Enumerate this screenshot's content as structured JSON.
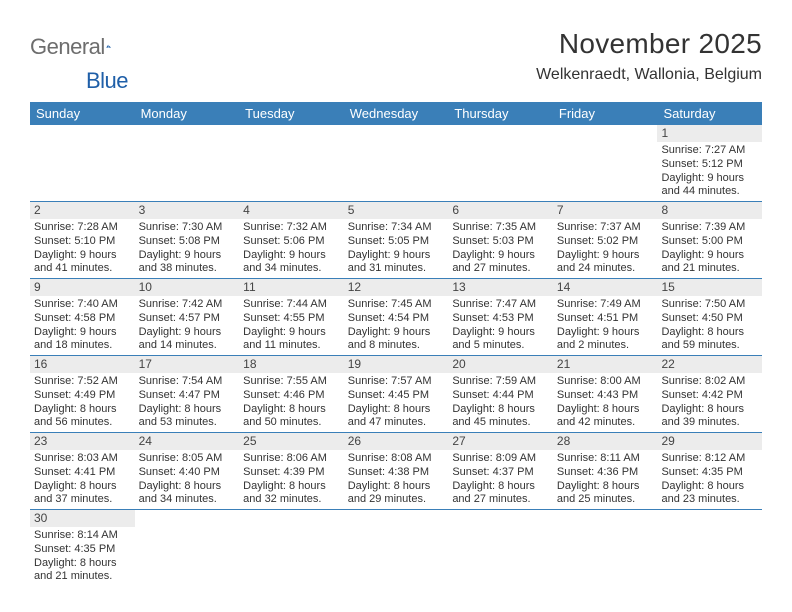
{
  "colors": {
    "header_bar": "#3a7fb8",
    "cell_divider": "#3a7fb8",
    "daynum_bg": "#ececec",
    "text": "#333333",
    "logo_gray": "#6d6d6d",
    "logo_blue": "#1f5fa8"
  },
  "logo": {
    "text_left": "General",
    "text_right": "Blue"
  },
  "title": {
    "month": "November 2025",
    "location": "Welkenraedt, Wallonia, Belgium"
  },
  "day_names": [
    "Sunday",
    "Monday",
    "Tuesday",
    "Wednesday",
    "Thursday",
    "Friday",
    "Saturday"
  ],
  "weeks": [
    [
      null,
      null,
      null,
      null,
      null,
      null,
      {
        "n": "1",
        "sr": "Sunrise: 7:27 AM",
        "ss": "Sunset: 5:12 PM",
        "d1": "Daylight: 9 hours",
        "d2": "and 44 minutes."
      }
    ],
    [
      {
        "n": "2",
        "sr": "Sunrise: 7:28 AM",
        "ss": "Sunset: 5:10 PM",
        "d1": "Daylight: 9 hours",
        "d2": "and 41 minutes."
      },
      {
        "n": "3",
        "sr": "Sunrise: 7:30 AM",
        "ss": "Sunset: 5:08 PM",
        "d1": "Daylight: 9 hours",
        "d2": "and 38 minutes."
      },
      {
        "n": "4",
        "sr": "Sunrise: 7:32 AM",
        "ss": "Sunset: 5:06 PM",
        "d1": "Daylight: 9 hours",
        "d2": "and 34 minutes."
      },
      {
        "n": "5",
        "sr": "Sunrise: 7:34 AM",
        "ss": "Sunset: 5:05 PM",
        "d1": "Daylight: 9 hours",
        "d2": "and 31 minutes."
      },
      {
        "n": "6",
        "sr": "Sunrise: 7:35 AM",
        "ss": "Sunset: 5:03 PM",
        "d1": "Daylight: 9 hours",
        "d2": "and 27 minutes."
      },
      {
        "n": "7",
        "sr": "Sunrise: 7:37 AM",
        "ss": "Sunset: 5:02 PM",
        "d1": "Daylight: 9 hours",
        "d2": "and 24 minutes."
      },
      {
        "n": "8",
        "sr": "Sunrise: 7:39 AM",
        "ss": "Sunset: 5:00 PM",
        "d1": "Daylight: 9 hours",
        "d2": "and 21 minutes."
      }
    ],
    [
      {
        "n": "9",
        "sr": "Sunrise: 7:40 AM",
        "ss": "Sunset: 4:58 PM",
        "d1": "Daylight: 9 hours",
        "d2": "and 18 minutes."
      },
      {
        "n": "10",
        "sr": "Sunrise: 7:42 AM",
        "ss": "Sunset: 4:57 PM",
        "d1": "Daylight: 9 hours",
        "d2": "and 14 minutes."
      },
      {
        "n": "11",
        "sr": "Sunrise: 7:44 AM",
        "ss": "Sunset: 4:55 PM",
        "d1": "Daylight: 9 hours",
        "d2": "and 11 minutes."
      },
      {
        "n": "12",
        "sr": "Sunrise: 7:45 AM",
        "ss": "Sunset: 4:54 PM",
        "d1": "Daylight: 9 hours",
        "d2": "and 8 minutes."
      },
      {
        "n": "13",
        "sr": "Sunrise: 7:47 AM",
        "ss": "Sunset: 4:53 PM",
        "d1": "Daylight: 9 hours",
        "d2": "and 5 minutes."
      },
      {
        "n": "14",
        "sr": "Sunrise: 7:49 AM",
        "ss": "Sunset: 4:51 PM",
        "d1": "Daylight: 9 hours",
        "d2": "and 2 minutes."
      },
      {
        "n": "15",
        "sr": "Sunrise: 7:50 AM",
        "ss": "Sunset: 4:50 PM",
        "d1": "Daylight: 8 hours",
        "d2": "and 59 minutes."
      }
    ],
    [
      {
        "n": "16",
        "sr": "Sunrise: 7:52 AM",
        "ss": "Sunset: 4:49 PM",
        "d1": "Daylight: 8 hours",
        "d2": "and 56 minutes."
      },
      {
        "n": "17",
        "sr": "Sunrise: 7:54 AM",
        "ss": "Sunset: 4:47 PM",
        "d1": "Daylight: 8 hours",
        "d2": "and 53 minutes."
      },
      {
        "n": "18",
        "sr": "Sunrise: 7:55 AM",
        "ss": "Sunset: 4:46 PM",
        "d1": "Daylight: 8 hours",
        "d2": "and 50 minutes."
      },
      {
        "n": "19",
        "sr": "Sunrise: 7:57 AM",
        "ss": "Sunset: 4:45 PM",
        "d1": "Daylight: 8 hours",
        "d2": "and 47 minutes."
      },
      {
        "n": "20",
        "sr": "Sunrise: 7:59 AM",
        "ss": "Sunset: 4:44 PM",
        "d1": "Daylight: 8 hours",
        "d2": "and 45 minutes."
      },
      {
        "n": "21",
        "sr": "Sunrise: 8:00 AM",
        "ss": "Sunset: 4:43 PM",
        "d1": "Daylight: 8 hours",
        "d2": "and 42 minutes."
      },
      {
        "n": "22",
        "sr": "Sunrise: 8:02 AM",
        "ss": "Sunset: 4:42 PM",
        "d1": "Daylight: 8 hours",
        "d2": "and 39 minutes."
      }
    ],
    [
      {
        "n": "23",
        "sr": "Sunrise: 8:03 AM",
        "ss": "Sunset: 4:41 PM",
        "d1": "Daylight: 8 hours",
        "d2": "and 37 minutes."
      },
      {
        "n": "24",
        "sr": "Sunrise: 8:05 AM",
        "ss": "Sunset: 4:40 PM",
        "d1": "Daylight: 8 hours",
        "d2": "and 34 minutes."
      },
      {
        "n": "25",
        "sr": "Sunrise: 8:06 AM",
        "ss": "Sunset: 4:39 PM",
        "d1": "Daylight: 8 hours",
        "d2": "and 32 minutes."
      },
      {
        "n": "26",
        "sr": "Sunrise: 8:08 AM",
        "ss": "Sunset: 4:38 PM",
        "d1": "Daylight: 8 hours",
        "d2": "and 29 minutes."
      },
      {
        "n": "27",
        "sr": "Sunrise: 8:09 AM",
        "ss": "Sunset: 4:37 PM",
        "d1": "Daylight: 8 hours",
        "d2": "and 27 minutes."
      },
      {
        "n": "28",
        "sr": "Sunrise: 8:11 AM",
        "ss": "Sunset: 4:36 PM",
        "d1": "Daylight: 8 hours",
        "d2": "and 25 minutes."
      },
      {
        "n": "29",
        "sr": "Sunrise: 8:12 AM",
        "ss": "Sunset: 4:35 PM",
        "d1": "Daylight: 8 hours",
        "d2": "and 23 minutes."
      }
    ],
    [
      {
        "n": "30",
        "sr": "Sunrise: 8:14 AM",
        "ss": "Sunset: 4:35 PM",
        "d1": "Daylight: 8 hours",
        "d2": "and 21 minutes."
      },
      null,
      null,
      null,
      null,
      null,
      null
    ]
  ]
}
